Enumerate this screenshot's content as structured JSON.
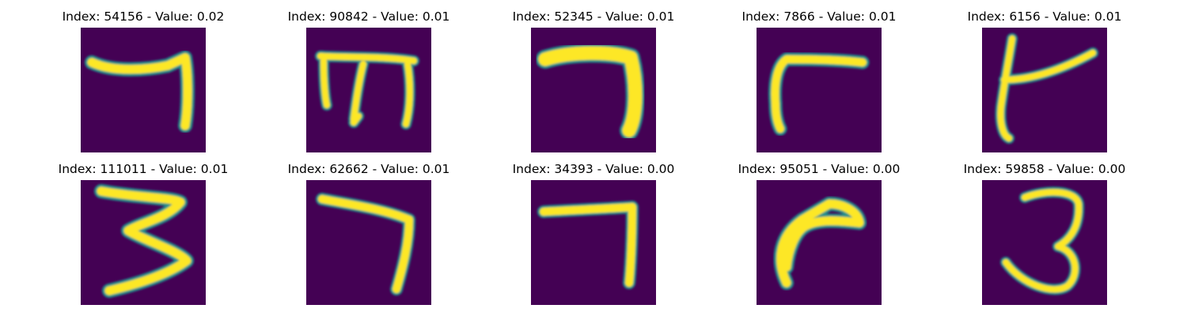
{
  "colors": {
    "background": "#440154",
    "stroke_core": "#fde725",
    "stroke_edge": "#21918c"
  },
  "panels": [
    {
      "title": "Index: 54156 - Value: 0.02",
      "glyph": "seven-like stroke"
    },
    {
      "title": "Index: 90842 - Value: 0.01",
      "glyph": "m-like stroke"
    },
    {
      "title": "Index: 52345 - Value: 0.01",
      "glyph": "seven-like stroke"
    },
    {
      "title": "Index: 7866 - Value: 0.01",
      "glyph": "gamma-like stroke"
    },
    {
      "title": "Index: 6156 - Value: 0.01",
      "glyph": "t-like stroke"
    },
    {
      "title": "Index: 111011 - Value: 0.01",
      "glyph": "three-like stroke"
    },
    {
      "title": "Index: 62662 - Value: 0.01",
      "glyph": "seven-like stroke"
    },
    {
      "title": "Index: 34393 - Value: 0.00",
      "glyph": "seven-like stroke"
    },
    {
      "title": "Index: 95051 - Value: 0.00",
      "glyph": "hook-like stroke"
    },
    {
      "title": "Index: 59858 - Value: 0.00",
      "glyph": "three-like stroke"
    }
  ]
}
